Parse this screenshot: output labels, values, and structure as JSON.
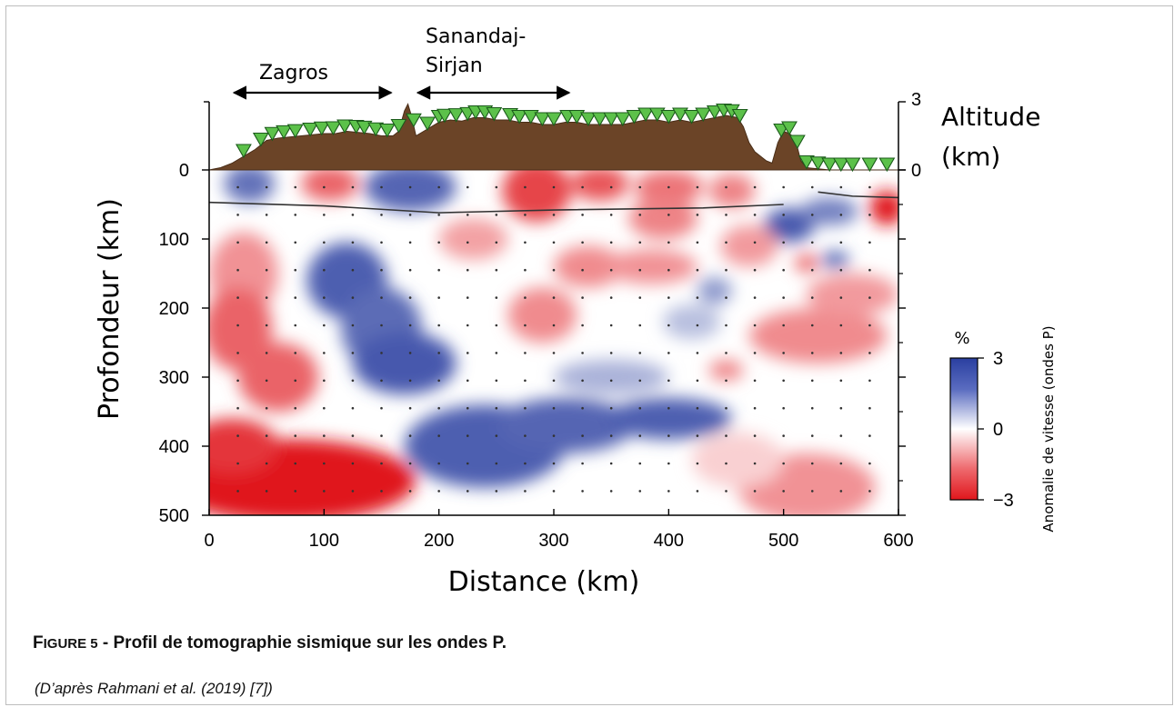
{
  "caption": {
    "figure_label_cap": "F",
    "figure_label_rest": "IGURE 5",
    "title_rest": " - Profil de tomographie sismique sur les ondes P.",
    "source": "(D’après Rahmani et al. (2019) [7])"
  },
  "chart_data": {
    "type": "heatmap",
    "title": "",
    "xlabel": "Distance (km)",
    "ylabel": "Profondeur (km)",
    "xlim": [
      0,
      600
    ],
    "ylim": [
      0,
      500
    ],
    "x_ticks": [
      0,
      100,
      200,
      300,
      400,
      500,
      600
    ],
    "y_ticks": [
      0,
      100,
      200,
      300,
      400,
      500
    ],
    "x_tick_labels": [
      "0",
      "100",
      "200",
      "300",
      "400",
      "500",
      "600"
    ],
    "y_tick_labels": [
      "0",
      "100",
      "200",
      "300",
      "400",
      "500"
    ],
    "altitude_axis": {
      "label_line1": "Altitude",
      "label_line2": "(km)",
      "ticks": [
        0,
        3
      ],
      "tick_labels": [
        "0",
        "3"
      ],
      "range": [
        0,
        3
      ]
    },
    "colorbar": {
      "unit": "%",
      "label": "Anomalie de vitesse (ondes P)",
      "range": [
        -3,
        3
      ],
      "ticks": [
        3,
        0,
        -3
      ],
      "tick_labels": [
        "3",
        "0",
        "−3"
      ],
      "colors": [
        "#2a3fa0",
        "#ffffff",
        "#e0161c"
      ]
    },
    "region_labels": [
      {
        "text": "Zagros",
        "x_range": [
          20,
          160
        ]
      },
      {
        "text_line1": "Sanandaj-",
        "text_line2": "Sirjan",
        "x_range": [
          180,
          315
        ]
      }
    ],
    "topography": {
      "x": [
        0,
        10,
        20,
        30,
        40,
        50,
        60,
        70,
        80,
        90,
        100,
        110,
        120,
        130,
        140,
        150,
        160,
        165,
        170,
        173,
        176,
        180,
        190,
        200,
        210,
        220,
        230,
        240,
        250,
        260,
        270,
        280,
        290,
        300,
        310,
        320,
        330,
        340,
        350,
        360,
        370,
        380,
        390,
        400,
        410,
        420,
        430,
        440,
        450,
        460,
        465,
        470,
        475,
        480,
        485,
        490,
        495,
        500,
        505,
        510,
        515,
        520,
        530,
        540,
        550,
        560,
        570,
        580,
        590,
        600
      ],
      "altitude": [
        0,
        0.1,
        0.3,
        0.6,
        0.9,
        1.3,
        1.4,
        1.45,
        1.5,
        1.55,
        1.6,
        1.6,
        1.7,
        1.65,
        1.6,
        1.5,
        1.5,
        1.7,
        2.6,
        2.9,
        2.4,
        1.5,
        1.8,
        2.1,
        2.2,
        2.15,
        2.3,
        2.3,
        2.2,
        2.2,
        2.1,
        2.1,
        2.0,
        2.0,
        2.1,
        2.1,
        2.0,
        2.0,
        2.0,
        2.0,
        2.1,
        2.2,
        2.2,
        2.1,
        2.2,
        2.1,
        2.2,
        2.3,
        2.4,
        2.3,
        1.9,
        1.2,
        0.8,
        0.6,
        0.4,
        0.3,
        1.2,
        1.7,
        1.6,
        1.4,
        0.4,
        0.1,
        0.05,
        0,
        0,
        0,
        0,
        0,
        0,
        0
      ]
    },
    "stations_x": [
      30,
      45,
      55,
      65,
      75,
      88,
      98,
      108,
      118,
      128,
      135,
      145,
      155,
      165,
      178,
      190,
      200,
      205,
      215,
      225,
      232,
      240,
      248,
      262,
      270,
      280,
      290,
      300,
      312,
      320,
      330,
      340,
      350,
      360,
      370,
      380,
      390,
      400,
      410,
      420,
      430,
      440,
      448,
      455,
      462,
      498,
      505,
      512,
      520,
      530,
      540,
      550,
      560,
      575,
      590
    ],
    "moho": {
      "segment1": {
        "x": [
          0,
          100,
          200,
          300,
          430,
          500
        ],
        "depth": [
          47,
          52,
          62,
          58,
          55,
          50
        ]
      },
      "segment2": {
        "x": [
          530,
          560,
          600
        ],
        "depth": [
          32,
          38,
          40
        ]
      }
    },
    "anomaly_blobs": [
      {
        "x": 35,
        "depth": 20,
        "value": 2.2,
        "rx": 22,
        "ry": 28
      },
      {
        "x": 105,
        "depth": 20,
        "value": -2.0,
        "rx": 25,
        "ry": 25
      },
      {
        "x": 175,
        "depth": 25,
        "value": 2.4,
        "rx": 40,
        "ry": 35
      },
      {
        "x": 285,
        "depth": 30,
        "value": -2.4,
        "rx": 30,
        "ry": 45
      },
      {
        "x": 340,
        "depth": 20,
        "value": -2.2,
        "rx": 25,
        "ry": 25
      },
      {
        "x": 400,
        "depth": 25,
        "value": -1.8,
        "rx": 30,
        "ry": 25
      },
      {
        "x": 455,
        "depth": 30,
        "value": -1.6,
        "rx": 20,
        "ry": 25
      },
      {
        "x": 505,
        "depth": 80,
        "value": 2.6,
        "rx": 22,
        "ry": 25
      },
      {
        "x": 540,
        "depth": 60,
        "value": 2.0,
        "rx": 25,
        "ry": 20
      },
      {
        "x": 590,
        "depth": 55,
        "value": -3.0,
        "rx": 15,
        "ry": 25
      },
      {
        "x": 330,
        "depth": 140,
        "value": -1.5,
        "rx": 30,
        "ry": 30
      },
      {
        "x": 470,
        "depth": 110,
        "value": -1.3,
        "rx": 25,
        "ry": 30
      },
      {
        "x": 395,
        "depth": 70,
        "value": -1.6,
        "rx": 30,
        "ry": 30
      },
      {
        "x": 30,
        "depth": 150,
        "value": -1.4,
        "rx": 30,
        "ry": 60
      },
      {
        "x": 25,
        "depth": 230,
        "value": -2.0,
        "rx": 30,
        "ry": 60
      },
      {
        "x": 60,
        "depth": 300,
        "value": -2.0,
        "rx": 35,
        "ry": 50
      },
      {
        "x": 120,
        "depth": 160,
        "value": 2.5,
        "rx": 35,
        "ry": 55
      },
      {
        "x": 150,
        "depth": 230,
        "value": 2.3,
        "rx": 35,
        "ry": 60
      },
      {
        "x": 170,
        "depth": 280,
        "value": 2.6,
        "rx": 45,
        "ry": 45
      },
      {
        "x": 240,
        "depth": 400,
        "value": 2.5,
        "rx": 70,
        "ry": 60
      },
      {
        "x": 310,
        "depth": 370,
        "value": 2.4,
        "rx": 60,
        "ry": 40
      },
      {
        "x": 400,
        "depth": 360,
        "value": 2.5,
        "rx": 55,
        "ry": 30
      },
      {
        "x": 350,
        "depth": 300,
        "value": 1.2,
        "rx": 50,
        "ry": 25
      },
      {
        "x": 440,
        "depth": 175,
        "value": 1.6,
        "rx": 15,
        "ry": 20
      },
      {
        "x": 420,
        "depth": 220,
        "value": 1.0,
        "rx": 25,
        "ry": 25
      },
      {
        "x": 290,
        "depth": 210,
        "value": -1.5,
        "rx": 30,
        "ry": 40
      },
      {
        "x": 230,
        "depth": 100,
        "value": -1.2,
        "rx": 30,
        "ry": 30
      },
      {
        "x": 385,
        "depth": 140,
        "value": -1.4,
        "rx": 40,
        "ry": 25
      },
      {
        "x": 530,
        "depth": 240,
        "value": -1.5,
        "rx": 60,
        "ry": 40
      },
      {
        "x": 560,
        "depth": 180,
        "value": -1.3,
        "rx": 40,
        "ry": 30
      },
      {
        "x": 545,
        "depth": 130,
        "value": 2.5,
        "rx": 12,
        "ry": 12
      },
      {
        "x": 520,
        "depth": 135,
        "value": -2.2,
        "rx": 10,
        "ry": 12
      },
      {
        "x": 450,
        "depth": 290,
        "value": -1.6,
        "rx": 15,
        "ry": 15
      },
      {
        "x": 70,
        "depth": 450,
        "value": -3.0,
        "rx": 110,
        "ry": 60
      },
      {
        "x": 20,
        "depth": 400,
        "value": -2.6,
        "rx": 40,
        "ry": 40
      },
      {
        "x": 520,
        "depth": 460,
        "value": -1.4,
        "rx": 60,
        "ry": 50
      },
      {
        "x": 460,
        "depth": 420,
        "value": -0.6,
        "rx": 40,
        "ry": 40
      }
    ]
  }
}
